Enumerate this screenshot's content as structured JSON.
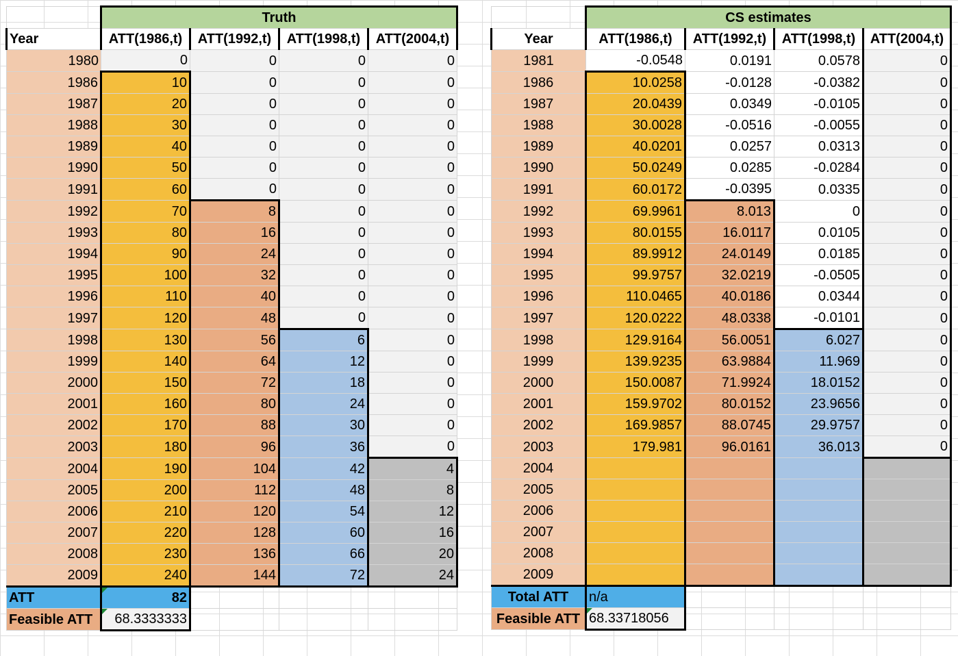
{
  "truth": {
    "banner": "Truth",
    "headers": [
      "Year",
      "ATT(1986,t)",
      "ATT(1992,t)",
      "ATT(1998,t)",
      "ATT(2004,t)"
    ],
    "rows": [
      [
        "1980",
        "0",
        "0",
        "0",
        "0"
      ],
      [
        "1986",
        "10",
        "0",
        "0",
        "0"
      ],
      [
        "1987",
        "20",
        "0",
        "0",
        "0"
      ],
      [
        "1988",
        "30",
        "0",
        "0",
        "0"
      ],
      [
        "1989",
        "40",
        "0",
        "0",
        "0"
      ],
      [
        "1990",
        "50",
        "0",
        "0",
        "0"
      ],
      [
        "1991",
        "60",
        "0",
        "0",
        "0"
      ],
      [
        "1992",
        "70",
        "8",
        "0",
        "0"
      ],
      [
        "1993",
        "80",
        "16",
        "0",
        "0"
      ],
      [
        "1994",
        "90",
        "24",
        "0",
        "0"
      ],
      [
        "1995",
        "100",
        "32",
        "0",
        "0"
      ],
      [
        "1996",
        "110",
        "40",
        "0",
        "0"
      ],
      [
        "1997",
        "120",
        "48",
        "0",
        "0"
      ],
      [
        "1998",
        "130",
        "56",
        "6",
        "0"
      ],
      [
        "1999",
        "140",
        "64",
        "12",
        "0"
      ],
      [
        "2000",
        "150",
        "72",
        "18",
        "0"
      ],
      [
        "2001",
        "160",
        "80",
        "24",
        "0"
      ],
      [
        "2002",
        "170",
        "88",
        "30",
        "0"
      ],
      [
        "2003",
        "180",
        "96",
        "36",
        "0"
      ],
      [
        "2004",
        "190",
        "104",
        "42",
        "4"
      ],
      [
        "2005",
        "200",
        "112",
        "48",
        "8"
      ],
      [
        "2006",
        "210",
        "120",
        "54",
        "12"
      ],
      [
        "2007",
        "220",
        "128",
        "60",
        "16"
      ],
      [
        "2008",
        "230",
        "136",
        "66",
        "20"
      ],
      [
        "2009",
        "240",
        "144",
        "72",
        "24"
      ]
    ],
    "att_label": "ATT",
    "att_value": "82",
    "feasible_label": "Feasible ATT",
    "feasible_value": "68.3333333"
  },
  "cs": {
    "banner": "CS estimates",
    "headers": [
      "Year",
      "ATT(1986,t)",
      "ATT(1992,t)",
      "ATT(1998,t)",
      "ATT(2004,t)"
    ],
    "rows": [
      [
        "1981",
        "-0.0548",
        "0.0191",
        "0.0578",
        "0"
      ],
      [
        "1986",
        "10.0258",
        "-0.0128",
        "-0.0382",
        "0"
      ],
      [
        "1987",
        "20.0439",
        "0.0349",
        "-0.0105",
        "0"
      ],
      [
        "1988",
        "30.0028",
        "-0.0516",
        "-0.0055",
        "0"
      ],
      [
        "1989",
        "40.0201",
        "0.0257",
        "0.0313",
        "0"
      ],
      [
        "1990",
        "50.0249",
        "0.0285",
        "-0.0284",
        "0"
      ],
      [
        "1991",
        "60.0172",
        "-0.0395",
        "0.0335",
        "0"
      ],
      [
        "1992",
        "69.9961",
        "8.013",
        "0",
        "0"
      ],
      [
        "1993",
        "80.0155",
        "16.0117",
        "0.0105",
        "0"
      ],
      [
        "1994",
        "89.9912",
        "24.0149",
        "0.0185",
        "0"
      ],
      [
        "1995",
        "99.9757",
        "32.0219",
        "-0.0505",
        "0"
      ],
      [
        "1996",
        "110.0465",
        "40.0186",
        "0.0344",
        "0"
      ],
      [
        "1997",
        "120.0222",
        "48.0338",
        "-0.0101",
        "0"
      ],
      [
        "1998",
        "129.9164",
        "56.0051",
        "6.027",
        "0"
      ],
      [
        "1999",
        "139.9235",
        "63.9884",
        "11.969",
        "0"
      ],
      [
        "2000",
        "150.0087",
        "71.9924",
        "18.0152",
        "0"
      ],
      [
        "2001",
        "159.9702",
        "80.0152",
        "23.9656",
        "0"
      ],
      [
        "2002",
        "169.9857",
        "88.0745",
        "29.9757",
        "0"
      ],
      [
        "2003",
        "179.981",
        "96.0161",
        "36.013",
        "0"
      ],
      [
        "2004",
        "",
        "",
        "",
        ""
      ],
      [
        "2005",
        "",
        "",
        "",
        ""
      ],
      [
        "2006",
        "",
        "",
        "",
        ""
      ],
      [
        "2007",
        "",
        "",
        "",
        ""
      ],
      [
        "2008",
        "",
        "",
        "",
        ""
      ],
      [
        "2009",
        "",
        "",
        "",
        ""
      ]
    ],
    "att_label": "Total ATT",
    "att_value": "n/a",
    "feasible_label": "Feasible ATT",
    "feasible_value": "68.33718056"
  },
  "colors": {
    "banner": "#b5d59c",
    "year": "#f2caad",
    "cohort_1986": "#f4be3d",
    "cohort_1992": "#e9ac83",
    "cohort_1998": "#a7c4e4",
    "cohort_2004": "#bfbfbf",
    "zero": "#f2f2f2",
    "att": "#4faee7"
  }
}
